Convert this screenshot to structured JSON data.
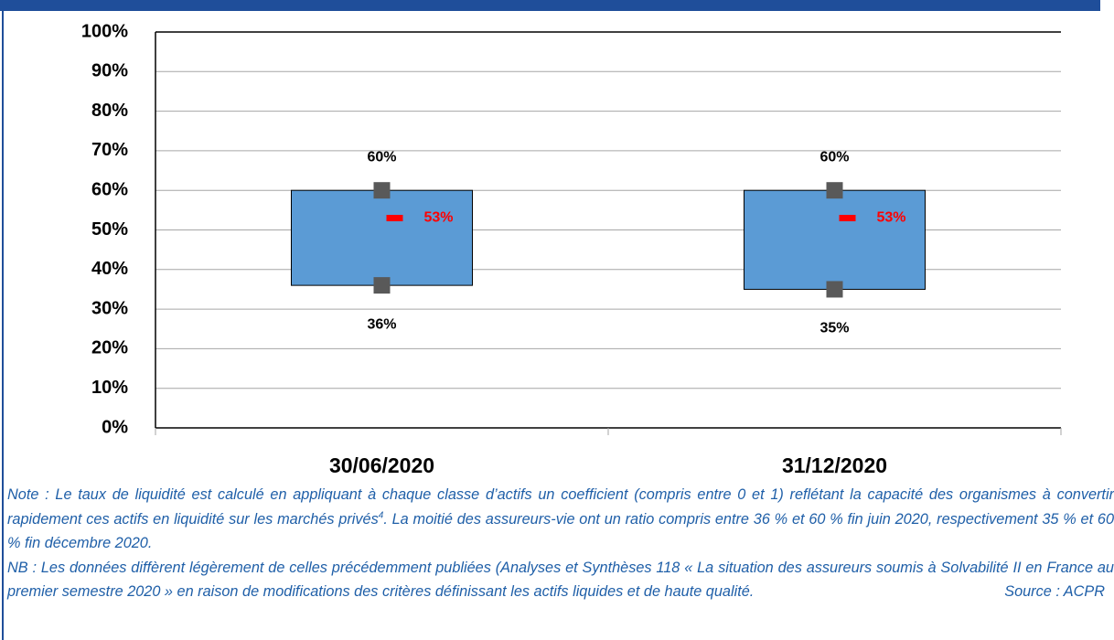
{
  "chart_data": {
    "type": "range",
    "categories": [
      "30/06/2020",
      "31/12/2020"
    ],
    "box_color": "#5b9bd5",
    "series": [
      {
        "values": [
          36,
          35
        ],
        "value_labels": [
          "36%",
          "35%"
        ],
        "color": "#595959"
      },
      {
        "values": [
          53,
          53
        ],
        "value_labels": [
          "53%",
          "53%"
        ],
        "color": "#ff0000"
      },
      {
        "values": [
          60,
          60
        ],
        "value_labels": [
          "60%",
          "60%"
        ],
        "color": "#595959"
      }
    ],
    "ylim": [
      0,
      100
    ],
    "yticks": [
      {
        "value": 0,
        "label": "0%"
      },
      {
        "value": 10,
        "label": "10%"
      },
      {
        "value": 20,
        "label": "20%"
      },
      {
        "value": 30,
        "label": "30%"
      },
      {
        "value": 40,
        "label": "40%"
      },
      {
        "value": 50,
        "label": "50%"
      },
      {
        "value": 60,
        "label": "60%"
      },
      {
        "value": 70,
        "label": "70%"
      },
      {
        "value": 80,
        "label": "80%"
      },
      {
        "value": 90,
        "label": "90%"
      },
      {
        "value": 100,
        "label": "100%"
      }
    ],
    "grid": true
  },
  "notes": {
    "note": {
      "text": "Note : Le taux de liquidité est calculé en appliquant à chaque classe d’actifs un coefficient (compris entre 0 et 1) reflétant la capacité des organismes à convertir rapidement ces actifs en liquidité sur les marchés privés",
      "footnote_ref": "4",
      "text_end": ". La moitié des assureurs-vie ont un ratio compris entre 36 % et 60 % fin juin 2020, respectivement 35 % et 60 % fin décembre 2020."
    },
    "nb": "NB : Les données diffèrent légèrement de celles précédemment publiées (Analyses et Synthèses 118 « La situation des assureurs soumis à Solvabilité II en France au premier semestre 2020 » en raison de modifications des critères définissant les actifs liquides et de haute qualité.",
    "source": "Source : ACPR"
  }
}
